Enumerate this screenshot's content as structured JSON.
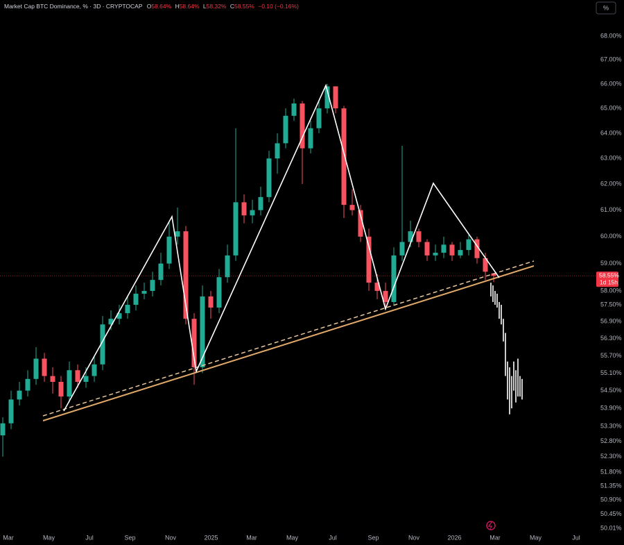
{
  "header": {
    "title": "Market Cap BTC Dominance, % · 3D · CRYPTOCAP",
    "ohlc": [
      {
        "key": "O",
        "value": "58.64%"
      },
      {
        "key": "H",
        "value": "58.64%"
      },
      {
        "key": "L",
        "value": "58.32%"
      },
      {
        "key": "C",
        "value": "58.55%"
      }
    ],
    "change": "−0.10 (−0.16%)"
  },
  "percent_button": "%",
  "chart_data": {
    "type": "candlestick",
    "log_scale": true,
    "grid": false,
    "up_color": "#22ab94",
    "down_color": "#f7525f",
    "ylim": [
      49.86,
      69.55
    ],
    "yticks": [
      {
        "value": 68,
        "label": "68.00%"
      },
      {
        "value": 67,
        "label": "67.00%"
      },
      {
        "value": 66,
        "label": "66.00%"
      },
      {
        "value": 65,
        "label": "65.00%"
      },
      {
        "value": 64,
        "label": "64.00%"
      },
      {
        "value": 63,
        "label": "63.00%"
      },
      {
        "value": 62,
        "label": "62.00%"
      },
      {
        "value": 61,
        "label": "61.00%"
      },
      {
        "value": 60,
        "label": "60.00%"
      },
      {
        "value": 59,
        "label": "59.00%"
      },
      {
        "value": 58,
        "label": "58.00%"
      },
      {
        "value": 57.5,
        "label": "57.50%"
      },
      {
        "value": 56.9,
        "label": "56.90%"
      },
      {
        "value": 56.3,
        "label": "56.30%"
      },
      {
        "value": 55.7,
        "label": "55.70%"
      },
      {
        "value": 55.1,
        "label": "55.10%"
      },
      {
        "value": 54.5,
        "label": "54.50%"
      },
      {
        "value": 53.9,
        "label": "53.90%"
      },
      {
        "value": 53.3,
        "label": "53.30%"
      },
      {
        "value": 52.8,
        "label": "52.80%"
      },
      {
        "value": 52.3,
        "label": "52.30%"
      },
      {
        "value": 51.8,
        "label": "51.80%"
      },
      {
        "value": 51.35,
        "label": "51.35%"
      },
      {
        "value": 50.9,
        "label": "50.90%"
      },
      {
        "value": 50.45,
        "label": "50.45%"
      },
      {
        "value": 50.01,
        "label": "50.01%"
      }
    ],
    "x_labels": [
      "Mar",
      "May",
      "Jul",
      "Sep",
      "Nov",
      "2025",
      "Mar",
      "May",
      "Jul",
      "Sep",
      "Nov",
      "2026",
      "Mar",
      "May",
      "Jul"
    ],
    "open": [
      53.0,
      53.4,
      54.2,
      54.5,
      54.9,
      55.6,
      55.0,
      54.8,
      54.3,
      55.2,
      54.8,
      55.0,
      55.4,
      56.8,
      57.0,
      57.2,
      57.5,
      57.9,
      58.0,
      58.4,
      59.0,
      60.0,
      60.2,
      57.0,
      55.3,
      57.8,
      57.4,
      58.5,
      59.3,
      61.3,
      60.8,
      61.0,
      61.5,
      63.0,
      63.6,
      64.7,
      65.2,
      63.4,
      64.2,
      65.0,
      65.9,
      65.0,
      61.2,
      61.0,
      60.0,
      58.3,
      58.0,
      57.6,
      59.3,
      59.8,
      60.2,
      59.8,
      59.3,
      59.4,
      59.7,
      59.3,
      59.5,
      59.9,
      59.2,
      58.64
    ],
    "high": [
      53.6,
      54.5,
      54.8,
      55.2,
      56.0,
      55.8,
      55.3,
      55.0,
      55.5,
      55.4,
      55.3,
      55.7,
      57.1,
      57.3,
      57.5,
      57.8,
      58.2,
      58.3,
      58.7,
      59.4,
      60.6,
      61.1,
      60.4,
      57.2,
      58.2,
      58.0,
      58.8,
      59.7,
      64.2,
      61.6,
      61.4,
      61.9,
      63.3,
      64.0,
      65.0,
      65.4,
      65.3,
      64.5,
      65.3,
      66.0,
      65.9,
      65.1,
      61.8,
      61.2,
      60.3,
      58.6,
      58.3,
      59.6,
      63.5,
      60.6,
      60.3,
      59.9,
      59.7,
      60.0,
      59.8,
      59.8,
      60.1,
      60.0,
      59.4,
      58.64
    ],
    "low": [
      52.3,
      53.2,
      54.0,
      54.3,
      54.7,
      54.8,
      54.4,
      53.9,
      54.1,
      54.6,
      54.6,
      54.8,
      55.2,
      56.6,
      56.8,
      57.0,
      57.3,
      57.7,
      57.8,
      58.2,
      58.8,
      59.7,
      56.8,
      54.7,
      55.1,
      57.0,
      57.2,
      58.3,
      59.1,
      60.5,
      60.5,
      60.8,
      61.3,
      62.4,
      63.4,
      64.5,
      62.0,
      63.2,
      64.0,
      64.8,
      64.8,
      60.7,
      60.8,
      59.8,
      58.0,
      57.7,
      57.4,
      57.5,
      59.1,
      59.6,
      59.6,
      59.1,
      59.1,
      59.2,
      59.1,
      59.2,
      59.3,
      59.0,
      58.4,
      58.32
    ],
    "close": [
      53.4,
      54.2,
      54.5,
      54.9,
      55.6,
      55.0,
      54.8,
      54.3,
      55.2,
      54.8,
      55.0,
      55.4,
      56.8,
      57.0,
      57.2,
      57.5,
      57.9,
      58.0,
      58.4,
      59.0,
      60.0,
      60.2,
      57.0,
      55.3,
      57.8,
      57.4,
      58.5,
      59.3,
      61.3,
      60.8,
      61.0,
      61.5,
      63.0,
      63.6,
      64.7,
      65.2,
      63.4,
      64.2,
      65.0,
      65.9,
      65.0,
      61.2,
      61.0,
      60.0,
      58.3,
      58.0,
      57.6,
      59.3,
      59.8,
      60.2,
      59.8,
      59.3,
      59.4,
      59.7,
      59.3,
      59.5,
      59.9,
      59.2,
      58.7,
      58.55
    ],
    "projection": {
      "color": "#ffffff",
      "high": [
        58.3,
        58.2,
        58.0,
        57.9,
        57.6,
        57.5,
        57.0,
        56.5,
        55.5,
        55.3,
        55.0,
        55.5,
        55.2,
        55.6,
        55.0,
        54.9
      ],
      "low": [
        57.8,
        57.6,
        57.5,
        57.4,
        57.0,
        56.8,
        56.2,
        55.0,
        54.2,
        53.7,
        53.9,
        54.5,
        54.1,
        54.3,
        54.3,
        54.2
      ]
    },
    "price_label": "58.55%",
    "countdown": "1d 15h",
    "price_label_color": "#f23645"
  }
}
